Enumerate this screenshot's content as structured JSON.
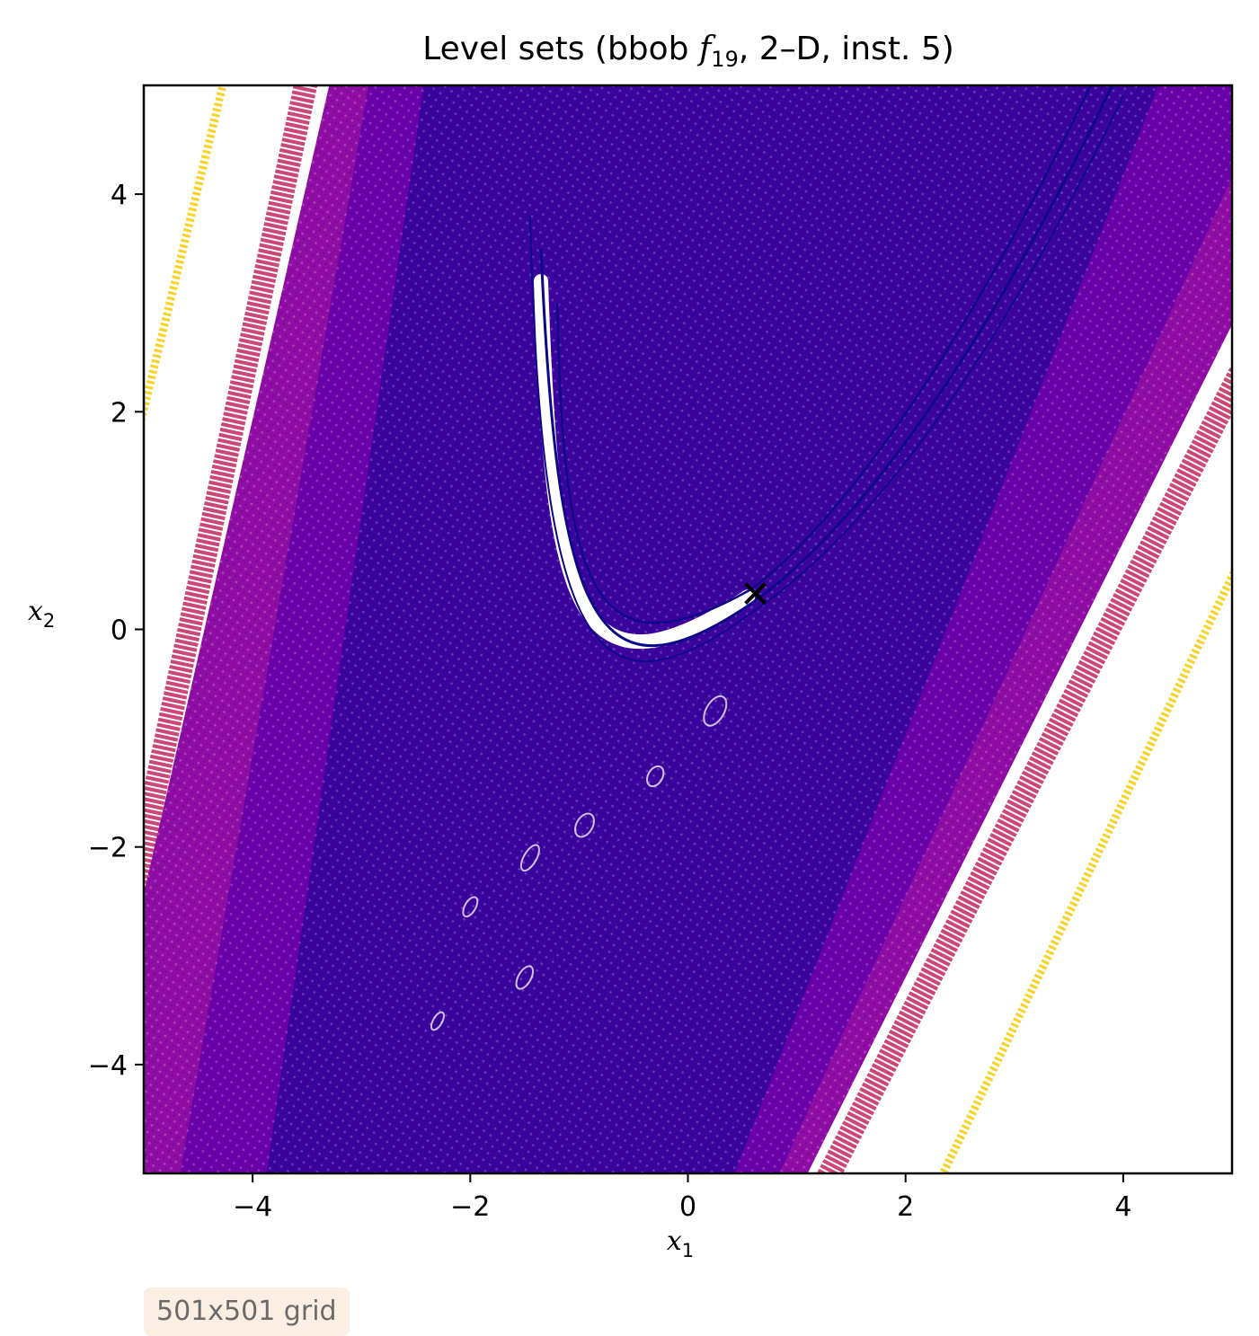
{
  "chart_data": {
    "type": "contour",
    "title_main": "Level sets (bbob ",
    "title_func": "f",
    "title_sub": "19",
    "title_rest": ", 2–D, inst. 5)",
    "xlabel": {
      "var": "x",
      "sub": "1"
    },
    "ylabel": {
      "var": "x",
      "sub": "2"
    },
    "xlim": [
      -5,
      5
    ],
    "ylim": [
      -5,
      5
    ],
    "xticks": [
      -4,
      -2,
      0,
      2,
      4
    ],
    "yticks": [
      -4,
      -2,
      0,
      2,
      4
    ],
    "xtick_labels": [
      "−4",
      "−2",
      "0",
      "2",
      "4"
    ],
    "ytick_labels": [
      "−4",
      "−2",
      "0",
      "2",
      "4"
    ],
    "grid": false,
    "colormap": "plasma",
    "colors": {
      "dense_fill": "#3a039c",
      "mid_fill": "#6a00a8",
      "outer_fill": "#8f0da4",
      "band_pink": "#cc4778",
      "band_yellow": "#f9d221",
      "valley_line": "#0d0887",
      "marker": "#000000"
    },
    "optimum_marker": {
      "x": 0.62,
      "y": 0.33,
      "symbol": "x"
    },
    "annotation": "501x501 grid"
  }
}
